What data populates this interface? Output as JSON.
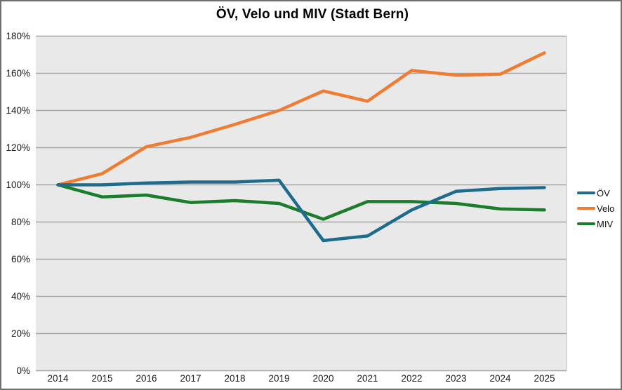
{
  "chart_data": {
    "type": "line",
    "title": "ÖV, Velo und MIV (Stadt Bern)",
    "categories": [
      "2014",
      "2015",
      "2016",
      "2017",
      "2018",
      "2019",
      "2020",
      "2021",
      "2022",
      "2023",
      "2024",
      "2025"
    ],
    "series": [
      {
        "name": "ÖV",
        "color": "#1F6B8E",
        "values": [
          100,
          100,
          101,
          101.5,
          101.5,
          102.5,
          70,
          72.5,
          86.5,
          96.5,
          98,
          98.5
        ]
      },
      {
        "name": "Velo",
        "color": "#EF7C33",
        "values": [
          100,
          106,
          120.5,
          125.5,
          132.5,
          140,
          150.5,
          145,
          161.5,
          159,
          159.5,
          171
        ]
      },
      {
        "name": "MIV",
        "color": "#1B7D2C",
        "values": [
          100,
          93.5,
          94.5,
          90.5,
          91.5,
          90,
          81.5,
          91,
          91,
          90,
          87,
          86.5
        ]
      }
    ],
    "xlabel": "",
    "ylabel": "",
    "ylim": [
      0,
      180
    ],
    "ytick_step": 20,
    "ytick_suffix": "%",
    "grid": true,
    "legend_position": "right",
    "plot_background": "#E9E9E9",
    "grid_color": "#A5A5A5",
    "tick_label_color": "#1a1a1a"
  }
}
